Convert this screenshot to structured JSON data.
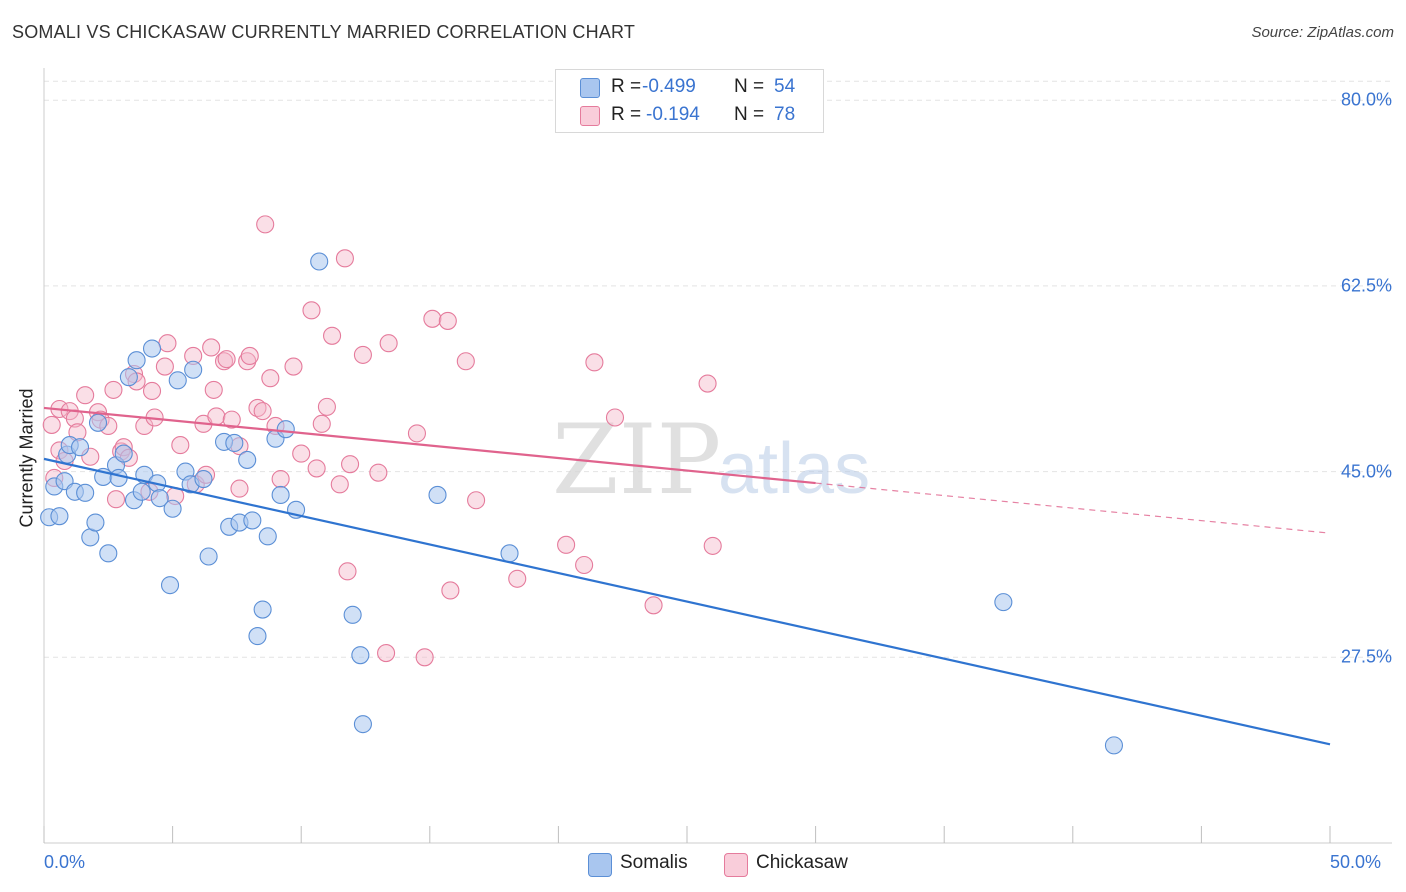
{
  "title": "SOMALI VS CHICKASAW CURRENTLY MARRIED CORRELATION CHART",
  "source": "Source: ZipAtlas.com",
  "watermark": {
    "zip": "ZIP",
    "atlas": "atlas"
  },
  "legend": {
    "rows": [
      {
        "label": "R =",
        "r": "-0.499",
        "n_label": "N =",
        "n": "54"
      },
      {
        "label": "R =",
        "r": "-0.194",
        "n_label": "N =",
        "n": "78"
      }
    ]
  },
  "bottom_legend": [
    "Somalis",
    "Chickasaw"
  ],
  "colors": {
    "blue_fill": "#a9c6ef",
    "blue_stroke": "#5b8fd6",
    "blue_line": "#2f74d0",
    "pink_fill": "#f5b7c9",
    "pink_stroke": "#e57b9c",
    "pink_line": "#e0638d",
    "grid": "#e4e4e4",
    "tick_text": "#3a74d0"
  },
  "chart_data": {
    "type": "scatter",
    "title": "SOMALI VS CHICKASAW CURRENTLY MARRIED CORRELATION CHART",
    "xlabel": "",
    "ylabel": "Currently Married",
    "xlim": [
      0,
      50
    ],
    "ylim": [
      10,
      82
    ],
    "y_ticks": [
      {
        "value": 80.0,
        "label": "80.0%"
      },
      {
        "value": 62.5,
        "label": "62.5%"
      },
      {
        "value": 45.0,
        "label": "45.0%"
      },
      {
        "value": 27.5,
        "label": "27.5%"
      }
    ],
    "x_tick_labels": [
      {
        "value": 0,
        "label": "0.0%"
      },
      {
        "value": 50,
        "label": "50.0%"
      }
    ],
    "series": [
      {
        "name": "Somalis",
        "r": -0.499,
        "n": 54,
        "trend": {
          "x0": 0,
          "y0": 46.2,
          "x1": 50,
          "y1": 19.3,
          "dash_from": null
        },
        "points": [
          [
            0.2,
            40.7
          ],
          [
            0.4,
            43.6
          ],
          [
            0.6,
            40.8
          ],
          [
            0.8,
            44.1
          ],
          [
            0.9,
            46.6
          ],
          [
            1.0,
            47.5
          ],
          [
            1.2,
            43.1
          ],
          [
            1.4,
            47.3
          ],
          [
            1.6,
            43.0
          ],
          [
            1.8,
            38.8
          ],
          [
            2.0,
            40.2
          ],
          [
            2.1,
            49.6
          ],
          [
            2.3,
            44.5
          ],
          [
            2.5,
            37.3
          ],
          [
            2.8,
            45.6
          ],
          [
            2.9,
            44.4
          ],
          [
            3.1,
            46.7
          ],
          [
            3.3,
            53.9
          ],
          [
            3.5,
            42.3
          ],
          [
            3.6,
            55.5
          ],
          [
            3.8,
            43.1
          ],
          [
            3.9,
            44.7
          ],
          [
            4.2,
            56.6
          ],
          [
            4.4,
            43.9
          ],
          [
            4.5,
            42.5
          ],
          [
            4.9,
            34.3
          ],
          [
            5.0,
            41.5
          ],
          [
            5.2,
            53.6
          ],
          [
            5.5,
            45.0
          ],
          [
            5.7,
            43.8
          ],
          [
            5.8,
            54.6
          ],
          [
            6.2,
            44.3
          ],
          [
            6.4,
            37.0
          ],
          [
            7.0,
            47.8
          ],
          [
            7.2,
            39.8
          ],
          [
            7.4,
            47.7
          ],
          [
            7.6,
            40.2
          ],
          [
            7.9,
            46.1
          ],
          [
            8.1,
            40.4
          ],
          [
            8.3,
            29.5
          ],
          [
            8.5,
            32.0
          ],
          [
            8.7,
            38.9
          ],
          [
            9.0,
            48.1
          ],
          [
            9.2,
            42.8
          ],
          [
            9.4,
            49.0
          ],
          [
            9.8,
            41.4
          ],
          [
            10.7,
            64.8
          ],
          [
            12.0,
            31.5
          ],
          [
            12.3,
            27.7
          ],
          [
            12.4,
            21.2
          ],
          [
            15.3,
            42.8
          ],
          [
            18.1,
            37.3
          ],
          [
            37.3,
            32.7
          ],
          [
            41.6,
            19.2
          ]
        ]
      },
      {
        "name": "Chickasaw",
        "r": -0.194,
        "n": 78,
        "trend": {
          "x0": 0,
          "y0": 51.0,
          "x1": 50,
          "y1": 39.2,
          "dash_from": 30.0
        },
        "points": [
          [
            0.3,
            49.4
          ],
          [
            0.4,
            44.4
          ],
          [
            0.6,
            50.9
          ],
          [
            0.6,
            47.0
          ],
          [
            0.8,
            46.0
          ],
          [
            1.0,
            50.7
          ],
          [
            1.2,
            50.0
          ],
          [
            1.3,
            48.7
          ],
          [
            1.6,
            52.2
          ],
          [
            1.8,
            46.4
          ],
          [
            2.1,
            50.6
          ],
          [
            2.2,
            49.9
          ],
          [
            2.5,
            49.3
          ],
          [
            2.7,
            52.7
          ],
          [
            2.8,
            42.4
          ],
          [
            3.0,
            46.9
          ],
          [
            3.1,
            47.3
          ],
          [
            3.3,
            46.3
          ],
          [
            3.5,
            54.2
          ],
          [
            3.6,
            53.5
          ],
          [
            3.9,
            49.3
          ],
          [
            4.1,
            43.1
          ],
          [
            4.2,
            52.6
          ],
          [
            4.3,
            50.1
          ],
          [
            4.7,
            54.9
          ],
          [
            4.8,
            57.1
          ],
          [
            5.1,
            42.7
          ],
          [
            5.3,
            47.5
          ],
          [
            5.8,
            55.9
          ],
          [
            5.9,
            43.8
          ],
          [
            6.2,
            49.5
          ],
          [
            6.3,
            44.7
          ],
          [
            6.5,
            56.7
          ],
          [
            6.6,
            52.7
          ],
          [
            6.7,
            50.2
          ],
          [
            7.0,
            55.4
          ],
          [
            7.1,
            55.6
          ],
          [
            7.3,
            49.9
          ],
          [
            7.6,
            43.4
          ],
          [
            7.6,
            47.4
          ],
          [
            7.9,
            55.4
          ],
          [
            8.0,
            55.9
          ],
          [
            8.3,
            51.0
          ],
          [
            8.5,
            50.7
          ],
          [
            8.6,
            68.3
          ],
          [
            8.8,
            53.8
          ],
          [
            9.0,
            49.3
          ],
          [
            9.2,
            44.3
          ],
          [
            9.7,
            54.9
          ],
          [
            10.0,
            46.7
          ],
          [
            10.4,
            60.2
          ],
          [
            10.6,
            45.3
          ],
          [
            10.8,
            49.5
          ],
          [
            11.0,
            51.1
          ],
          [
            11.2,
            57.8
          ],
          [
            11.5,
            43.8
          ],
          [
            11.7,
            65.1
          ],
          [
            11.8,
            35.6
          ],
          [
            11.9,
            45.7
          ],
          [
            12.4,
            56.0
          ],
          [
            13.0,
            44.9
          ],
          [
            13.3,
            27.9
          ],
          [
            13.4,
            57.1
          ],
          [
            14.5,
            48.6
          ],
          [
            14.8,
            27.5
          ],
          [
            15.1,
            59.4
          ],
          [
            15.7,
            59.2
          ],
          [
            15.8,
            33.8
          ],
          [
            16.4,
            55.4
          ],
          [
            16.8,
            42.3
          ],
          [
            18.4,
            34.9
          ],
          [
            20.3,
            38.1
          ],
          [
            21.0,
            36.2
          ],
          [
            21.4,
            55.3
          ],
          [
            22.2,
            50.1
          ],
          [
            23.7,
            32.4
          ],
          [
            25.8,
            53.3
          ],
          [
            26.0,
            38.0
          ]
        ]
      }
    ]
  }
}
